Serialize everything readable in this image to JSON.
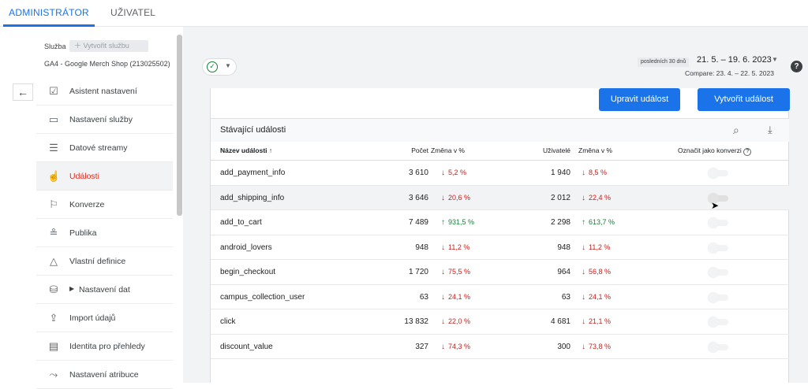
{
  "tabs": [
    {
      "label": "ADMINISTRÁTOR",
      "active": true
    },
    {
      "label": "UŽIVATEL",
      "active": false
    }
  ],
  "sidebar": {
    "service_label": "Služba",
    "create_service_label": "Vytvořit službu",
    "service_name": "GA4 - Google Merch Shop (213025502)",
    "items": [
      {
        "label": "Asistent nastavení",
        "icon": "clipboard-check-icon"
      },
      {
        "label": "Nastavení služby",
        "icon": "panel-icon"
      },
      {
        "label": "Datové streamy",
        "icon": "streams-icon"
      },
      {
        "label": "Události",
        "icon": "touch-icon",
        "active": true
      },
      {
        "label": "Konverze",
        "icon": "flag-icon"
      },
      {
        "label": "Publika",
        "icon": "audience-icon"
      },
      {
        "label": "Vlastní definice",
        "icon": "shapes-icon"
      },
      {
        "label": "Nastavení dat",
        "icon": "database-icon"
      },
      {
        "label": "Import údajů",
        "icon": "upload-icon"
      },
      {
        "label": "Identita pro přehledy",
        "icon": "identity-icon"
      },
      {
        "label": "Nastavení atribuce",
        "icon": "attribution-icon"
      }
    ]
  },
  "header": {
    "date_badge": "posledních 30 dnů",
    "date_range": "21. 5. – 19. 6. 2023",
    "compare": "Compare: 23. 4. – 22. 5. 2023"
  },
  "actions": {
    "edit_event": "Upravit událost",
    "create_event": "Vytvořit událost"
  },
  "table": {
    "title": "Stávající události",
    "columns": {
      "name": "Název události ↑",
      "count": "Počet",
      "count_change": "Změna v %",
      "users": "Uživatelé",
      "users_change": "Změna v %",
      "conversion": "Označit jako konverzi"
    },
    "rows": [
      {
        "name": "add_payment_info",
        "count": "3 610",
        "count_change": "5,2 %",
        "count_dir": "down",
        "users": "1 940",
        "users_change": "8,5 %",
        "users_dir": "down"
      },
      {
        "name": "add_shipping_info",
        "count": "3 646",
        "count_change": "20,6 %",
        "count_dir": "down",
        "users": "2 012",
        "users_change": "22,4 %",
        "users_dir": "down"
      },
      {
        "name": "add_to_cart",
        "count": "7 489",
        "count_change": "931,5 %",
        "count_dir": "up",
        "users": "2 298",
        "users_change": "613,7 %",
        "users_dir": "up"
      },
      {
        "name": "android_lovers",
        "count": "948",
        "count_change": "11,2 %",
        "count_dir": "down",
        "users": "948",
        "users_change": "11,2 %",
        "users_dir": "down"
      },
      {
        "name": "begin_checkout",
        "count": "1 720",
        "count_change": "75,5 %",
        "count_dir": "down",
        "users": "964",
        "users_change": "56,8 %",
        "users_dir": "down"
      },
      {
        "name": "campus_collection_user",
        "count": "63",
        "count_change": "24,1 %",
        "count_dir": "down",
        "users": "63",
        "users_change": "24,1 %",
        "users_dir": "down"
      },
      {
        "name": "click",
        "count": "13 832",
        "count_change": "22,0 %",
        "count_dir": "down",
        "users": "4 681",
        "users_change": "21,1 %",
        "users_dir": "down"
      },
      {
        "name": "discount_value",
        "count": "327",
        "count_change": "74,3 %",
        "count_dir": "down",
        "users": "300",
        "users_change": "73,8 %",
        "users_dir": "down"
      }
    ]
  }
}
